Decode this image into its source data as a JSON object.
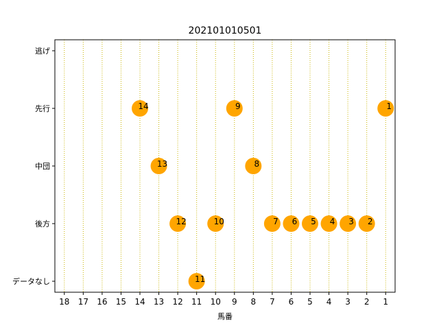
{
  "chart_data": {
    "type": "scatter",
    "title": "202101010501",
    "xlabel": "馬番",
    "ylabel": "",
    "x_ticks": [
      "18",
      "17",
      "16",
      "15",
      "14",
      "13",
      "12",
      "11",
      "10",
      "9",
      "8",
      "7",
      "6",
      "5",
      "4",
      "3",
      "2",
      "1"
    ],
    "y_categories": [
      "データなし",
      "後方",
      "中団",
      "先行",
      "逃げ"
    ],
    "xlim": [
      18.5,
      0.5
    ],
    "x_axis_reversed": true,
    "grid": "vertical dotted",
    "grid_color": "#c8b400",
    "marker_color": "#ffa500",
    "points": [
      {
        "x": 1,
        "y": "先行",
        "label": "1"
      },
      {
        "x": 2,
        "y": "後方",
        "label": "2"
      },
      {
        "x": 3,
        "y": "後方",
        "label": "3"
      },
      {
        "x": 4,
        "y": "後方",
        "label": "4"
      },
      {
        "x": 5,
        "y": "後方",
        "label": "5"
      },
      {
        "x": 6,
        "y": "後方",
        "label": "6"
      },
      {
        "x": 7,
        "y": "後方",
        "label": "7"
      },
      {
        "x": 8,
        "y": "中団",
        "label": "8"
      },
      {
        "x": 9,
        "y": "先行",
        "label": "9"
      },
      {
        "x": 10,
        "y": "後方",
        "label": "10"
      },
      {
        "x": 11,
        "y": "データなし",
        "label": "11"
      },
      {
        "x": 12,
        "y": "後方",
        "label": "12"
      },
      {
        "x": 13,
        "y": "中団",
        "label": "13"
      },
      {
        "x": 14,
        "y": "先行",
        "label": "14"
      }
    ]
  }
}
